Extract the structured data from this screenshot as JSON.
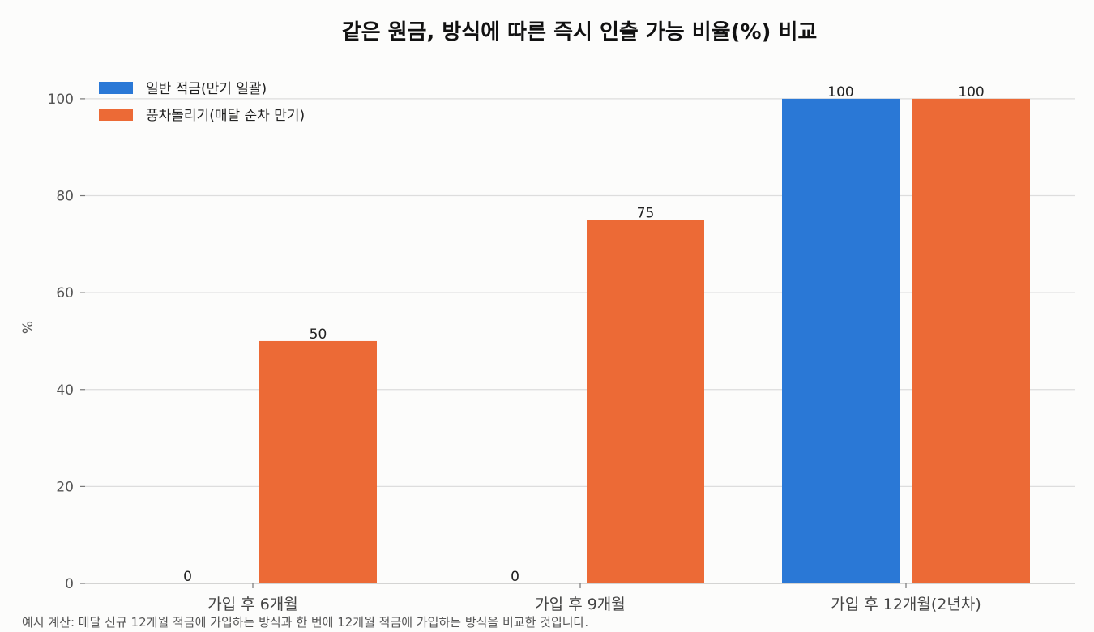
{
  "chart_data": {
    "type": "bar",
    "title": "같은 원금, 방식에 따른 즉시 인출 가능 비율(%) 비교",
    "ylabel": "%",
    "xlabel": "",
    "categories": [
      "가입 후 6개월",
      "가입 후 9개월",
      "가입 후 12개월(2년차)"
    ],
    "series": [
      {
        "name": "일반 적금(만기 일괄)",
        "color": "#2a78d6",
        "values": [
          0,
          0,
          100
        ]
      },
      {
        "name": "풍차돌리기(매달 순차 만기)",
        "color": "#ec6a36",
        "values": [
          50,
          75,
          100
        ]
      }
    ],
    "ylim": [
      0,
      105
    ],
    "yticks": [
      0,
      20,
      40,
      60,
      80,
      100
    ],
    "grid": true,
    "legend_position": "top-left",
    "footnote": "예시 계산: 매달 신규 12개월 적금에 가입하는 방식과 한 번에 12개월 적금에 가입하는 방식을 비교한 것입니다."
  }
}
